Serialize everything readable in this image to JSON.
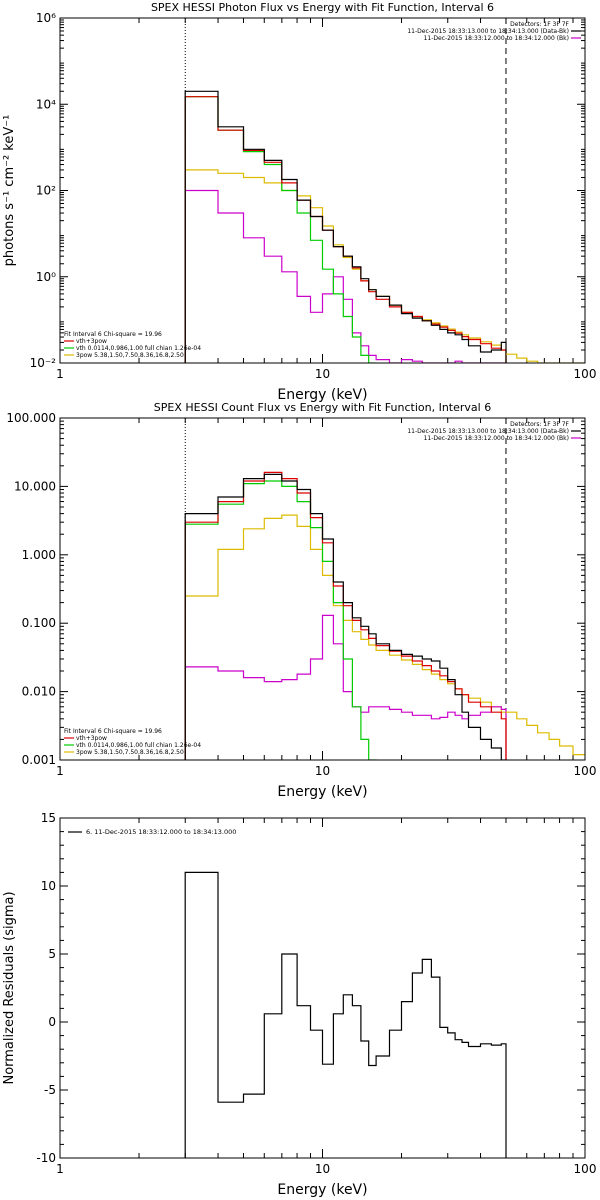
{
  "chart_data": [
    {
      "type": "line",
      "title": "SPEX HESSI Photon Flux vs Energy with Fit Function, Interval 6",
      "xlabel": "Energy (keV)",
      "ylabel": "photons s⁻¹ cm⁻² keV⁻¹",
      "xscale": "log",
      "yscale": "log",
      "xlim": [
        1,
        100
      ],
      "ylim": [
        0.01,
        1000000
      ],
      "xticks": [
        {
          "v": 1,
          "label": "1"
        },
        {
          "v": 10,
          "label": "10"
        },
        {
          "v": 100,
          "label": "100"
        }
      ],
      "yticks": [
        {
          "v": 0.01,
          "label": "10⁻²"
        },
        {
          "v": 1,
          "label": "10⁰"
        },
        {
          "v": 100,
          "label": "10²"
        },
        {
          "v": 10000,
          "label": "10⁴"
        },
        {
          "v": 1000000,
          "label": "10⁶"
        }
      ],
      "vlines": [
        {
          "x": 3,
          "style": "dotted"
        },
        {
          "x": 50,
          "style": "dashed"
        }
      ],
      "legend_top": [
        {
          "text": "Detectors: 1F 3F 7F",
          "color": null
        },
        {
          "text": "11-Dec-2015 18:33:13.000 to 18:34:13.000 (Data-Bk)",
          "color": "#000000"
        },
        {
          "text": "11-Dec-2015 18:33:12.000 to 18:34:12.000 (Bk)",
          "color": "#cc00cc"
        }
      ],
      "legend_bottom": [
        {
          "text": "Fit Interval 6   Chi-square = 19.96",
          "color": null
        },
        {
          "text": "vth+3pow",
          "color": "#dd0000"
        },
        {
          "text": "vth 0.0114,0.986,1.00  full chian 1.26e-04",
          "color": "#00cc00"
        },
        {
          "text": "3pow 5.38,1.50,7.50,8.36,16.8,2.50",
          "color": "#ddbb00"
        }
      ],
      "edges": [
        3,
        4,
        5,
        6,
        7,
        8,
        9,
        10,
        11,
        12,
        13,
        14,
        15,
        16,
        18,
        20,
        22,
        24,
        26,
        28,
        30,
        32,
        34,
        36,
        40,
        44,
        48,
        50
      ],
      "series": [
        {
          "name": "Data-Bk",
          "color": "#000000",
          "values": [
            20000,
            3000,
            900,
            500,
            180,
            60,
            25,
            12,
            5,
            3,
            1.7,
            0.9,
            0.5,
            0.35,
            0.22,
            0.14,
            0.11,
            0.095,
            0.075,
            0.06,
            0.05,
            0.045,
            0.035,
            0.025,
            0.018,
            0.02,
            0.03
          ]
        },
        {
          "name": "vth+3pow",
          "color": "#dd0000",
          "values": [
            15000,
            2500,
            850,
            450,
            150,
            60,
            25,
            12,
            5,
            3,
            1.6,
            0.8,
            0.45,
            0.3,
            0.2,
            0.15,
            0.12,
            0.095,
            0.08,
            0.068,
            0.057,
            0.049,
            0.041,
            0.035,
            0.028,
            0.022,
            0.02
          ]
        },
        {
          "name": "vth",
          "color": "#00cc00",
          "values": [
            15000,
            2500,
            800,
            400,
            100,
            30,
            7,
            1.5,
            0.4,
            0.12,
            0.04,
            0.015,
            0.008
          ]
        },
        {
          "name": "3pow",
          "color": "#ddbb00",
          "values": [
            300,
            250,
            200,
            150,
            100,
            75,
            40,
            15,
            5.5,
            2.8,
            1.5,
            0.8,
            0.5,
            0.35,
            0.22,
            0.15,
            0.12,
            0.1,
            0.085,
            0.072,
            0.061,
            0.052,
            0.045,
            0.038,
            0.031,
            0.026,
            0.02
          ]
        },
        {
          "name": "Bk",
          "color": "#cc00cc",
          "values": [
            100,
            30,
            8,
            3,
            1.3,
            0.35,
            0.15,
            0.4,
            1,
            0.3,
            0.05,
            0.025,
            0.015,
            0.012,
            0.01,
            0.012,
            0.011,
            0.01,
            0.009,
            0.009,
            0.01,
            0.011,
            0.01,
            0.009,
            0.008,
            0.007,
            0.008
          ]
        }
      ],
      "tail": {
        "color": "#ddbb00",
        "edges": [
          50,
          55,
          60,
          66,
          73,
          80,
          90,
          100
        ],
        "values": [
          0.016,
          0.013,
          0.011,
          0.009,
          0.008,
          0.0065,
          0.005
        ]
      }
    },
    {
      "type": "line",
      "title": "SPEX HESSI Count Flux vs Energy with Fit Function, Interval 6",
      "xlabel": "Energy (keV)",
      "ylabel": "",
      "xscale": "log",
      "yscale": "log",
      "xlim": [
        1,
        100
      ],
      "ylim": [
        0.001,
        100
      ],
      "xticks": [
        {
          "v": 1,
          "label": "1"
        },
        {
          "v": 10,
          "label": "10"
        },
        {
          "v": 100,
          "label": "100"
        }
      ],
      "yticks": [
        {
          "v": 0.001,
          "label": "0.001"
        },
        {
          "v": 0.01,
          "label": "0.010"
        },
        {
          "v": 0.1,
          "label": "0.100"
        },
        {
          "v": 1,
          "label": "1.000"
        },
        {
          "v": 10,
          "label": "10.000"
        },
        {
          "v": 100,
          "label": "100.000"
        }
      ],
      "vlines": [
        {
          "x": 3,
          "style": "dotted"
        },
        {
          "x": 50,
          "style": "dashed"
        }
      ],
      "legend_top": [
        {
          "text": "Detectors: 1F 3F 7F",
          "color": null
        },
        {
          "text": "11-Dec-2015 18:33:13.000 to 18:34:13.000 (Data-Bk)",
          "color": "#000000"
        },
        {
          "text": "11-Dec-2015 18:33:12.000 to 18:34:12.000 (Bk)",
          "color": "#cc00cc"
        }
      ],
      "legend_bottom": [
        {
          "text": "Fit Interval 6   Chi-square = 19.96",
          "color": null
        },
        {
          "text": "vth+3pow",
          "color": "#dd0000"
        },
        {
          "text": "vth 0.0114,0.986,1.00  full chian 1.26e-04",
          "color": "#00cc00"
        },
        {
          "text": "3pow 5.38,1.50,7.50,8.36,16.8,2.50",
          "color": "#ddbb00"
        }
      ],
      "edges": [
        3,
        4,
        5,
        6,
        7,
        8,
        9,
        10,
        11,
        12,
        13,
        14,
        15,
        16,
        18,
        20,
        22,
        24,
        26,
        28,
        30,
        32,
        34,
        36,
        40,
        44,
        48,
        50
      ],
      "series": [
        {
          "name": "Data-Bk",
          "color": "#000000",
          "values": [
            4,
            7,
            13,
            15,
            12,
            9,
            4,
            1.7,
            0.4,
            0.2,
            0.12,
            0.09,
            0.07,
            0.05,
            0.04,
            0.035,
            0.033,
            0.03,
            0.028,
            0.022,
            0.015,
            0.009,
            0.005,
            0.003,
            0.002,
            0.0015,
            0.001
          ]
        },
        {
          "name": "vth+3pow",
          "color": "#dd0000",
          "values": [
            3,
            6,
            12,
            16,
            13,
            8,
            3.5,
            1.5,
            0.35,
            0.18,
            0.11,
            0.08,
            0.06,
            0.047,
            0.039,
            0.033,
            0.028,
            0.024,
            0.02,
            0.017,
            0.014,
            0.011,
            0.009,
            0.007,
            0.006,
            0.005,
            0.004
          ]
        },
        {
          "name": "vth",
          "color": "#00cc00",
          "values": [
            2.8,
            5.5,
            11,
            12,
            10,
            6,
            2.5,
            0.8,
            0.2,
            0.03,
            0.006,
            0.002,
            0.001
          ]
        },
        {
          "name": "3pow",
          "color": "#ddbb00",
          "values": [
            0.25,
            1.2,
            2.4,
            3.4,
            3.8,
            2.6,
            1.2,
            0.5,
            0.18,
            0.11,
            0.075,
            0.058,
            0.048,
            0.04,
            0.034,
            0.029,
            0.025,
            0.021,
            0.018,
            0.015,
            0.013,
            0.011,
            0.009,
            0.008,
            0.007,
            0.006,
            0.005
          ]
        },
        {
          "name": "Bk",
          "color": "#cc00cc",
          "values": [
            0.023,
            0.02,
            0.016,
            0.014,
            0.015,
            0.018,
            0.03,
            0.13,
            0.05,
            0.01,
            0.006,
            0.005,
            0.006,
            0.006,
            0.0055,
            0.005,
            0.0045,
            0.0045,
            0.004,
            0.0042,
            0.005,
            0.0045,
            0.004,
            0.0045,
            0.005,
            0.006,
            0.0055
          ]
        }
      ],
      "tail": {
        "color": "#ddbb00",
        "edges": [
          50,
          55,
          60,
          66,
          73,
          80,
          90,
          100
        ],
        "values": [
          0.005,
          0.004,
          0.0032,
          0.0025,
          0.002,
          0.0016,
          0.0012
        ]
      }
    },
    {
      "type": "line",
      "title": "",
      "xlabel": "Energy (keV)",
      "ylabel": "Normalized Residuals (sigma)",
      "xscale": "log",
      "yscale": "linear",
      "xlim": [
        1,
        100
      ],
      "ylim": [
        -10,
        15
      ],
      "xticks": [
        {
          "v": 1,
          "label": "1"
        },
        {
          "v": 10,
          "label": "10"
        },
        {
          "v": 100,
          "label": "100"
        }
      ],
      "yticks": [
        {
          "v": -10,
          "label": "-10"
        },
        {
          "v": -5,
          "label": "-5"
        },
        {
          "v": 0,
          "label": "0"
        },
        {
          "v": 5,
          "label": "5"
        },
        {
          "v": 10,
          "label": "10"
        },
        {
          "v": 15,
          "label": "15"
        }
      ],
      "vlines": [],
      "legend_top": [
        {
          "text": "6. 11-Dec-2015 18:33:12.000 to 18:34:13.000",
          "color": "#000000"
        }
      ],
      "legend_bottom": [],
      "edges": [
        3,
        4,
        5,
        6,
        7,
        8,
        9,
        10,
        11,
        12,
        13,
        14,
        15,
        16,
        18,
        20,
        22,
        24,
        26,
        28,
        30,
        32,
        34,
        36,
        40,
        44,
        48,
        50
      ],
      "series": [
        {
          "name": "6. 11-Dec-2015 18:33:12.000 to 18:34:13.000",
          "color": "#000000",
          "values": [
            11,
            -5.9,
            -5.3,
            0.6,
            5,
            1.2,
            -0.6,
            -3.1,
            0.6,
            2,
            1.2,
            -1.4,
            -3.2,
            -2.5,
            -0.6,
            1.5,
            3.6,
            4.6,
            3.3,
            -0.4,
            -0.8,
            -1.3,
            -1.5,
            -1.8,
            -1.6,
            -1.7,
            -1.6
          ]
        }
      ]
    }
  ]
}
